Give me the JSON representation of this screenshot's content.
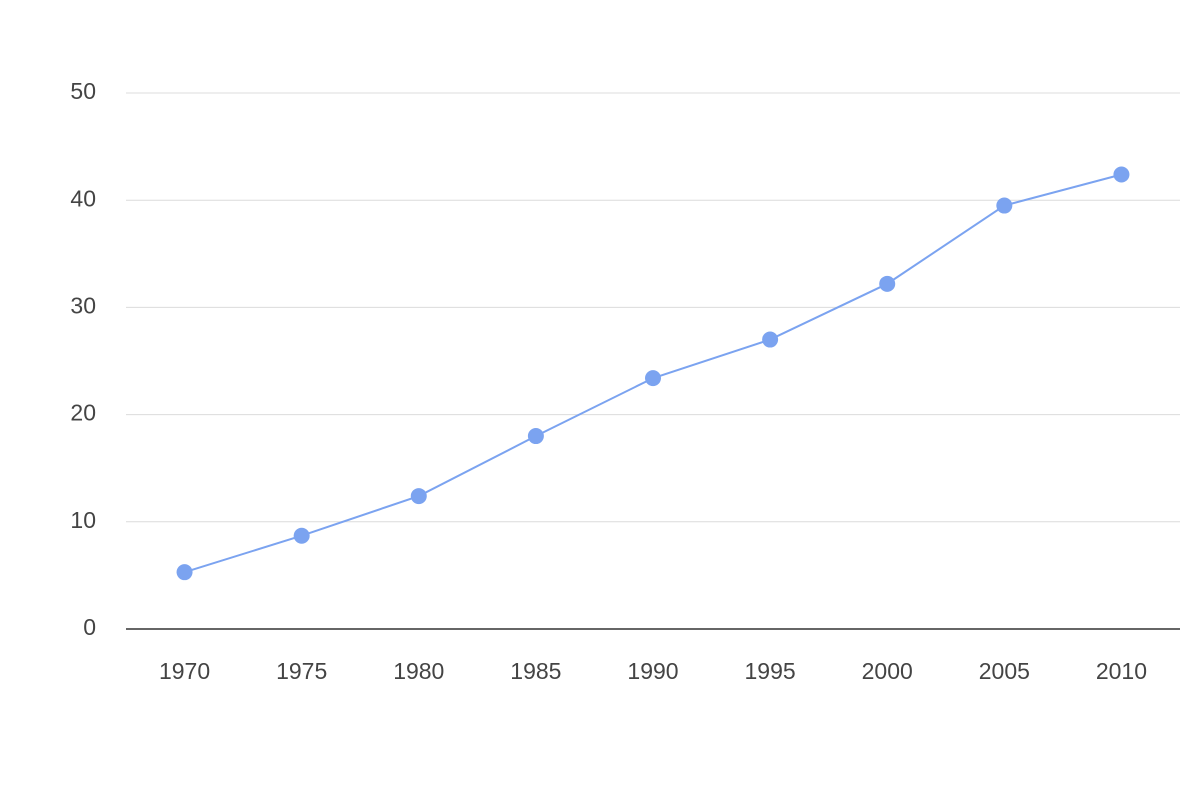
{
  "chart_data": {
    "type": "line",
    "categories": [
      "1970",
      "1975",
      "1980",
      "1985",
      "1990",
      "1995",
      "2000",
      "2005",
      "2010"
    ],
    "series": [
      {
        "color": "#7ba3f0",
        "values": [
          5.3,
          8.7,
          12.4,
          18.0,
          23.4,
          27.0,
          32.2,
          39.5,
          42.4
        ]
      }
    ],
    "ylim": [
      0,
      50
    ],
    "yticks": [
      0,
      10,
      20,
      30,
      40,
      50
    ],
    "grid": true
  }
}
